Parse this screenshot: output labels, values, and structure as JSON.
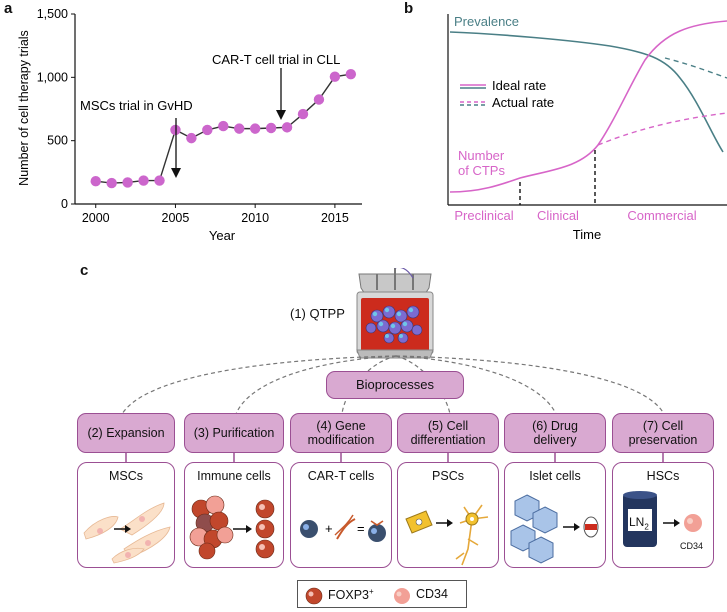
{
  "panel_a": {
    "label": "a",
    "ylabel": "Number of cell therapy trials",
    "xlabel": "Year",
    "annotation_msc": "MSCs trial in GvHD",
    "annotation_cart": "CAR-T cell trial in CLL",
    "colors": {
      "point": "#cc66cc",
      "line": "#333333"
    }
  },
  "panel_b": {
    "label": "b",
    "prevalence_label": "Prevalence",
    "ctp_label_line1": "Number",
    "ctp_label_line2": "of CTPs",
    "legend_ideal": "Ideal rate",
    "legend_actual": "Actual rate",
    "xlabel": "Time",
    "phases": [
      "Preclinical",
      "Clinical",
      "Commercial"
    ],
    "colors": {
      "prevalence": "#4a7f86",
      "ctp": "#d765c8"
    }
  },
  "panel_c": {
    "label": "c",
    "qtpp_label": "(1) QTPP",
    "bioprocesses_label": "Bioprocesses",
    "steps": [
      {
        "line1": "(2) Expansion",
        "line2": "",
        "card": "MSCs"
      },
      {
        "line1": "(3) Purification",
        "line2": "",
        "card": "Immune cells"
      },
      {
        "line1": "(4) Gene",
        "line2": "modification",
        "card": "CAR-T cells"
      },
      {
        "line1": "(5) Cell",
        "line2": "differentiation",
        "card": "PSCs"
      },
      {
        "line1": "(6) Drug",
        "line2": "delivery",
        "card": "Islet cells"
      },
      {
        "line1": "(7) Cell",
        "line2": "preservation",
        "card": "HSCs"
      }
    ],
    "ln2_label": "LN",
    "ln2_sub": "2",
    "cd34_small": "CD34",
    "legend_foxp3": "FOXP3",
    "legend_foxp3_sup": "+",
    "legend_cd34": "CD34",
    "colors": {
      "pill_fill": "#d9a9d1",
      "pill_border": "#9b4f93"
    }
  },
  "chart_data": {
    "type": "line",
    "x": [
      2000,
      2001,
      2002,
      2003,
      2004,
      2005,
      2006,
      2007,
      2008,
      2009,
      2010,
      2011,
      2012,
      2013,
      2014,
      2015,
      2016
    ],
    "series": [
      {
        "values": [
          180,
          165,
          170,
          185,
          185,
          585,
          520,
          585,
          615,
          595,
          595,
          600,
          605,
          710,
          825,
          1005,
          1025
        ]
      }
    ],
    "xlabel": "Year",
    "ylabel": "Number of cell therapy trials",
    "xticks": [
      "2000",
      "2005",
      "2010",
      "2015"
    ],
    "yticks": [
      "0",
      "500",
      "1,000",
      "1,500"
    ],
    "xlim": [
      1998.7,
      2016.7
    ],
    "ylim": [
      0,
      1500
    ]
  }
}
